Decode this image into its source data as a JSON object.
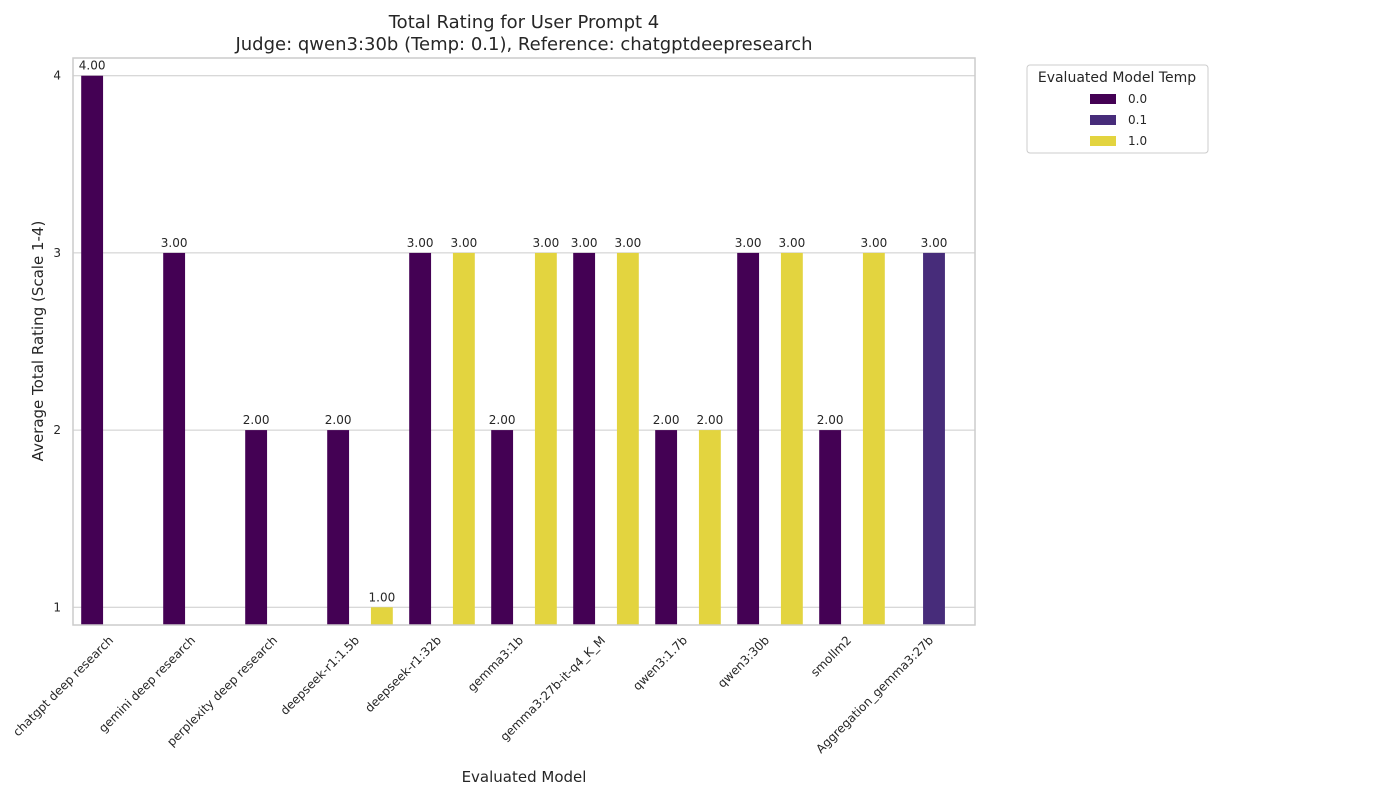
{
  "chart_data": {
    "type": "bar",
    "title": "Total Rating for User Prompt 4",
    "subtitle": "Judge: qwen3:30b (Temp: 0.1), Reference: chatgptdeepresearch",
    "xlabel": "Evaluated Model",
    "ylabel": "Average Total Rating (Scale 1-4)",
    "ylim": [
      0.9,
      4.1
    ],
    "yticks": [
      "1",
      "2",
      "3",
      "4"
    ],
    "grid": "horizontal",
    "legend": {
      "title": "Evaluated Model Temp",
      "placement": "outside top-right"
    },
    "categories": [
      "chatgpt deep research",
      "gemini deep research",
      "perplexity deep research",
      "deepseek-r1:1.5b",
      "deepseek-r1:32b",
      "gemma3:1b",
      "gemma3:27b-it-q4_K_M",
      "qwen3:1.7b",
      "qwen3:30b",
      "smollm2",
      "Aggregation_gemma3:27b"
    ],
    "series": [
      {
        "name": "0.0",
        "color": "#440154",
        "values": [
          4.0,
          3.0,
          2.0,
          2.0,
          3.0,
          2.0,
          3.0,
          2.0,
          3.0,
          2.0,
          null
        ],
        "labels": [
          "4.00",
          "3.00",
          "2.00",
          "2.00",
          "3.00",
          "2.00",
          "3.00",
          "2.00",
          "3.00",
          "2.00",
          ""
        ]
      },
      {
        "name": "0.1",
        "color": "#472c7a",
        "values": [
          null,
          null,
          null,
          null,
          null,
          null,
          null,
          null,
          null,
          null,
          3.0
        ],
        "labels": [
          "",
          "",
          "",
          "",
          "",
          "",
          "",
          "",
          "",
          "",
          "3.00"
        ]
      },
      {
        "name": "1.0",
        "color": "#e3d43f",
        "values": [
          null,
          null,
          null,
          1.0,
          3.0,
          3.0,
          3.0,
          2.0,
          3.0,
          3.0,
          null
        ],
        "labels": [
          "",
          "",
          "",
          "1.00",
          "3.00",
          "3.00",
          "3.00",
          "2.00",
          "3.00",
          "3.00",
          ""
        ]
      }
    ]
  }
}
